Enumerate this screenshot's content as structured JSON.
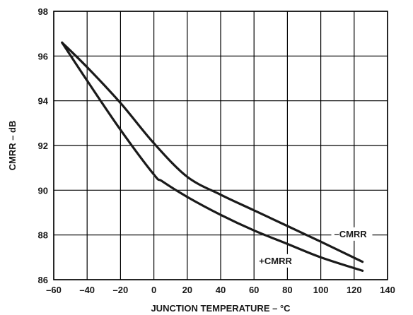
{
  "chart_data": {
    "type": "line",
    "xlabel": "JUNCTION TEMPERATURE – °C",
    "ylabel": "CMRR – dB",
    "xlim": [
      -60,
      140
    ],
    "ylim": [
      86,
      98
    ],
    "xticks": [
      -60,
      -40,
      -20,
      0,
      20,
      40,
      60,
      80,
      100,
      120,
      140
    ],
    "yticks": [
      86,
      88,
      90,
      92,
      94,
      96,
      98
    ],
    "xtick_labels": [
      "–60",
      "–40",
      "–20",
      "0",
      "20",
      "40",
      "60",
      "80",
      "100",
      "120",
      "140"
    ],
    "ytick_labels": [
      "86",
      "88",
      "90",
      "92",
      "94",
      "96",
      "98"
    ],
    "grid": true,
    "legend": "none",
    "series": [
      {
        "name": "–CMRR",
        "x": [
          -55,
          -40,
          -20,
          0,
          20,
          40,
          60,
          80,
          100,
          125
        ],
        "y": [
          96.6,
          95.5,
          93.9,
          92.1,
          90.6,
          89.8,
          89.1,
          88.4,
          87.7,
          86.8
        ]
      },
      {
        "name": "+CMRR",
        "x": [
          -55,
          -40,
          -20,
          0,
          5,
          20,
          40,
          60,
          80,
          100,
          125
        ],
        "y": [
          96.6,
          94.9,
          92.7,
          90.7,
          90.4,
          89.7,
          88.9,
          88.2,
          87.6,
          87.0,
          86.4
        ]
      }
    ]
  }
}
